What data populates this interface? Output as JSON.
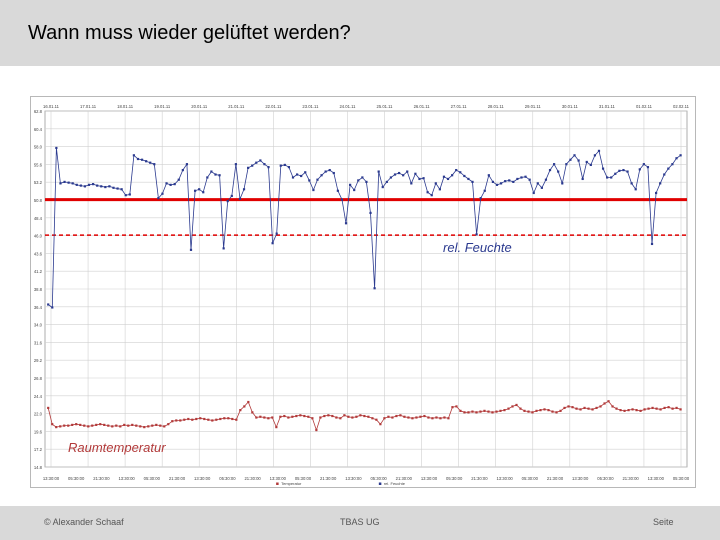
{
  "header": {
    "title": "Wann muss wieder gelüftet werden?"
  },
  "footer": {
    "left": "© Alexander Schaaf",
    "center": "TBAS UG",
    "right": "Seite"
  },
  "colors": {
    "humidity": "#2b3a8f",
    "temperature": "#b23a3a",
    "threshold_solid": "#e00000",
    "threshold_dashed": "#e00000",
    "grid": "#d0d0d0"
  },
  "chart_data": {
    "type": "line",
    "title": "",
    "xlabel": "",
    "ylabel": "",
    "ylim": [
      14.6,
      62.8
    ],
    "y_ticks": [
      "62.8",
      "60.4",
      "58.0",
      "55.6",
      "53.2",
      "50.8",
      "48.4",
      "46.0",
      "43.6",
      "41.2",
      "38.8",
      "36.4",
      "34.0",
      "31.6",
      "29.2",
      "26.8",
      "24.4",
      "22.0",
      "19.6",
      "17.2",
      "14.8"
    ],
    "x_top_labels": [
      "16.01.11",
      "17.01.11",
      "18.01.11",
      "19.01.11",
      "20.01.11",
      "21.01.11",
      "22.01.11",
      "23.01.11",
      "24.01.11",
      "25.01.11",
      "26.01.11",
      "27.01.11",
      "28.01.11",
      "29.01.11",
      "30.01.11",
      "31.01.11",
      "01.02.11",
      "02.02.11"
    ],
    "x_bottom_labels": [
      "13:30:00",
      "05:30:00",
      "21:30:00",
      "13:30:00",
      "05:30:00",
      "21:30:00",
      "13:30:00",
      "05:30:00",
      "21:30:00",
      "13:30:00",
      "05:30:00",
      "21:30:00",
      "13:30:00",
      "05:30:00",
      "21:30:00",
      "13:30:00",
      "05:30:00",
      "21:30:00",
      "13:30:00",
      "05:30:00",
      "21:30:00",
      "13:30:00",
      "05:30:00",
      "21:30:00",
      "13:30:00",
      "05:30:00"
    ],
    "thresholds": {
      "solid": 50.8,
      "dashed": 46.0
    },
    "annotations": {
      "humidity": "rel. Feuchte",
      "temperature": "Raumtemperatur"
    },
    "legend": {
      "placement": "bottom",
      "entries": [
        "Temperatur",
        "rel. Feuchte"
      ]
    },
    "series": [
      {
        "name": "rel. Feuchte",
        "values": [
          36.6,
          36.2,
          57.8,
          53.0,
          53.2,
          53.1,
          53.0,
          52.8,
          52.7,
          52.6,
          52.8,
          52.9,
          52.7,
          52.6,
          52.5,
          52.6,
          52.4,
          52.3,
          52.2,
          51.4,
          51.5,
          56.8,
          56.3,
          56.2,
          56.0,
          55.8,
          55.6,
          51.0,
          51.6,
          53.0,
          52.8,
          52.9,
          53.5,
          54.8,
          55.6,
          44.0,
          52.0,
          52.2,
          51.8,
          53.8,
          54.6,
          54.2,
          54.1,
          44.2,
          50.6,
          51.3,
          55.6,
          50.9,
          52.2,
          55.1,
          55.4,
          55.8,
          56.1,
          55.6,
          55.2,
          44.9,
          46.2,
          55.4,
          55.5,
          55.2,
          53.8,
          54.2,
          54.0,
          54.5,
          53.4,
          52.1,
          53.5,
          54.1,
          54.6,
          54.8,
          54.4,
          52.0,
          50.8,
          47.6,
          52.8,
          52.1,
          53.4,
          53.8,
          53.2,
          49.0,
          38.8,
          54.6,
          52.5,
          53.2,
          53.8,
          54.2,
          54.4,
          54.1,
          54.6,
          53.0,
          54.3,
          53.6,
          53.7,
          51.8,
          51.4,
          53.0,
          52.2,
          53.9,
          53.6,
          54.1,
          54.8,
          54.5,
          54.0,
          53.6,
          53.2,
          46.1,
          51.0,
          52.0,
          54.1,
          53.2,
          52.8,
          53.0,
          53.3,
          53.4,
          53.2,
          53.6,
          53.8,
          53.9,
          53.5,
          51.7,
          53.0,
          52.4,
          53.5,
          54.8,
          55.6,
          54.6,
          53.0,
          55.6,
          56.2,
          56.8,
          56.1,
          53.6,
          55.9,
          55.5,
          56.8,
          57.4,
          55.0,
          53.8,
          53.8,
          54.3,
          54.7,
          54.8,
          54.6,
          53.0,
          52.2,
          54.9,
          55.6,
          55.2,
          44.8,
          51.7,
          53.0,
          54.2,
          55.0,
          55.6,
          56.4,
          56.8
        ],
        "x_range": [
          0,
          1
        ]
      },
      {
        "name": "Temperatur",
        "values": [
          22.6,
          20.4,
          20.0,
          20.1,
          20.2,
          20.2,
          20.3,
          20.4,
          20.3,
          20.2,
          20.1,
          20.2,
          20.3,
          20.4,
          20.3,
          20.2,
          20.1,
          20.2,
          20.1,
          20.3,
          20.2,
          20.3,
          20.2,
          20.1,
          20.0,
          20.1,
          20.2,
          20.3,
          20.2,
          20.1,
          20.4,
          20.8,
          20.9,
          20.9,
          21.0,
          21.1,
          21.0,
          21.1,
          21.2,
          21.1,
          21.0,
          20.9,
          21.0,
          21.1,
          21.2,
          21.2,
          21.1,
          21.0,
          22.3,
          22.8,
          23.4,
          22.0,
          21.3,
          21.4,
          21.3,
          21.2,
          21.3,
          20.0,
          21.4,
          21.5,
          21.3,
          21.4,
          21.5,
          21.6,
          21.5,
          21.4,
          21.2,
          19.6,
          21.3,
          21.5,
          21.6,
          21.5,
          21.3,
          21.2,
          21.6,
          21.4,
          21.3,
          21.4,
          21.6,
          21.5,
          21.4,
          21.2,
          21.0,
          20.4,
          21.2,
          21.4,
          21.3,
          21.5,
          21.6,
          21.4,
          21.3,
          21.2,
          21.3,
          21.4,
          21.5,
          21.3,
          21.2,
          21.3,
          21.2,
          21.3,
          21.2,
          22.7,
          22.8,
          22.2,
          22.0,
          22.0,
          22.1,
          22.0,
          22.1,
          22.2,
          22.1,
          22.0,
          22.1,
          22.2,
          22.3,
          22.5,
          22.8,
          23.0,
          22.5,
          22.2,
          22.1,
          22.0,
          22.2,
          22.3,
          22.4,
          22.3,
          22.1,
          22.0,
          22.2,
          22.6,
          22.8,
          22.7,
          22.5,
          22.4,
          22.6,
          22.5,
          22.4,
          22.6,
          22.8,
          23.2,
          23.5,
          22.8,
          22.5,
          22.3,
          22.2,
          22.3,
          22.4,
          22.3,
          22.2,
          22.4,
          22.5,
          22.6,
          22.5,
          22.4,
          22.6,
          22.7,
          22.5,
          22.6,
          22.4
        ],
        "x_range": [
          0,
          1
        ]
      }
    ]
  }
}
